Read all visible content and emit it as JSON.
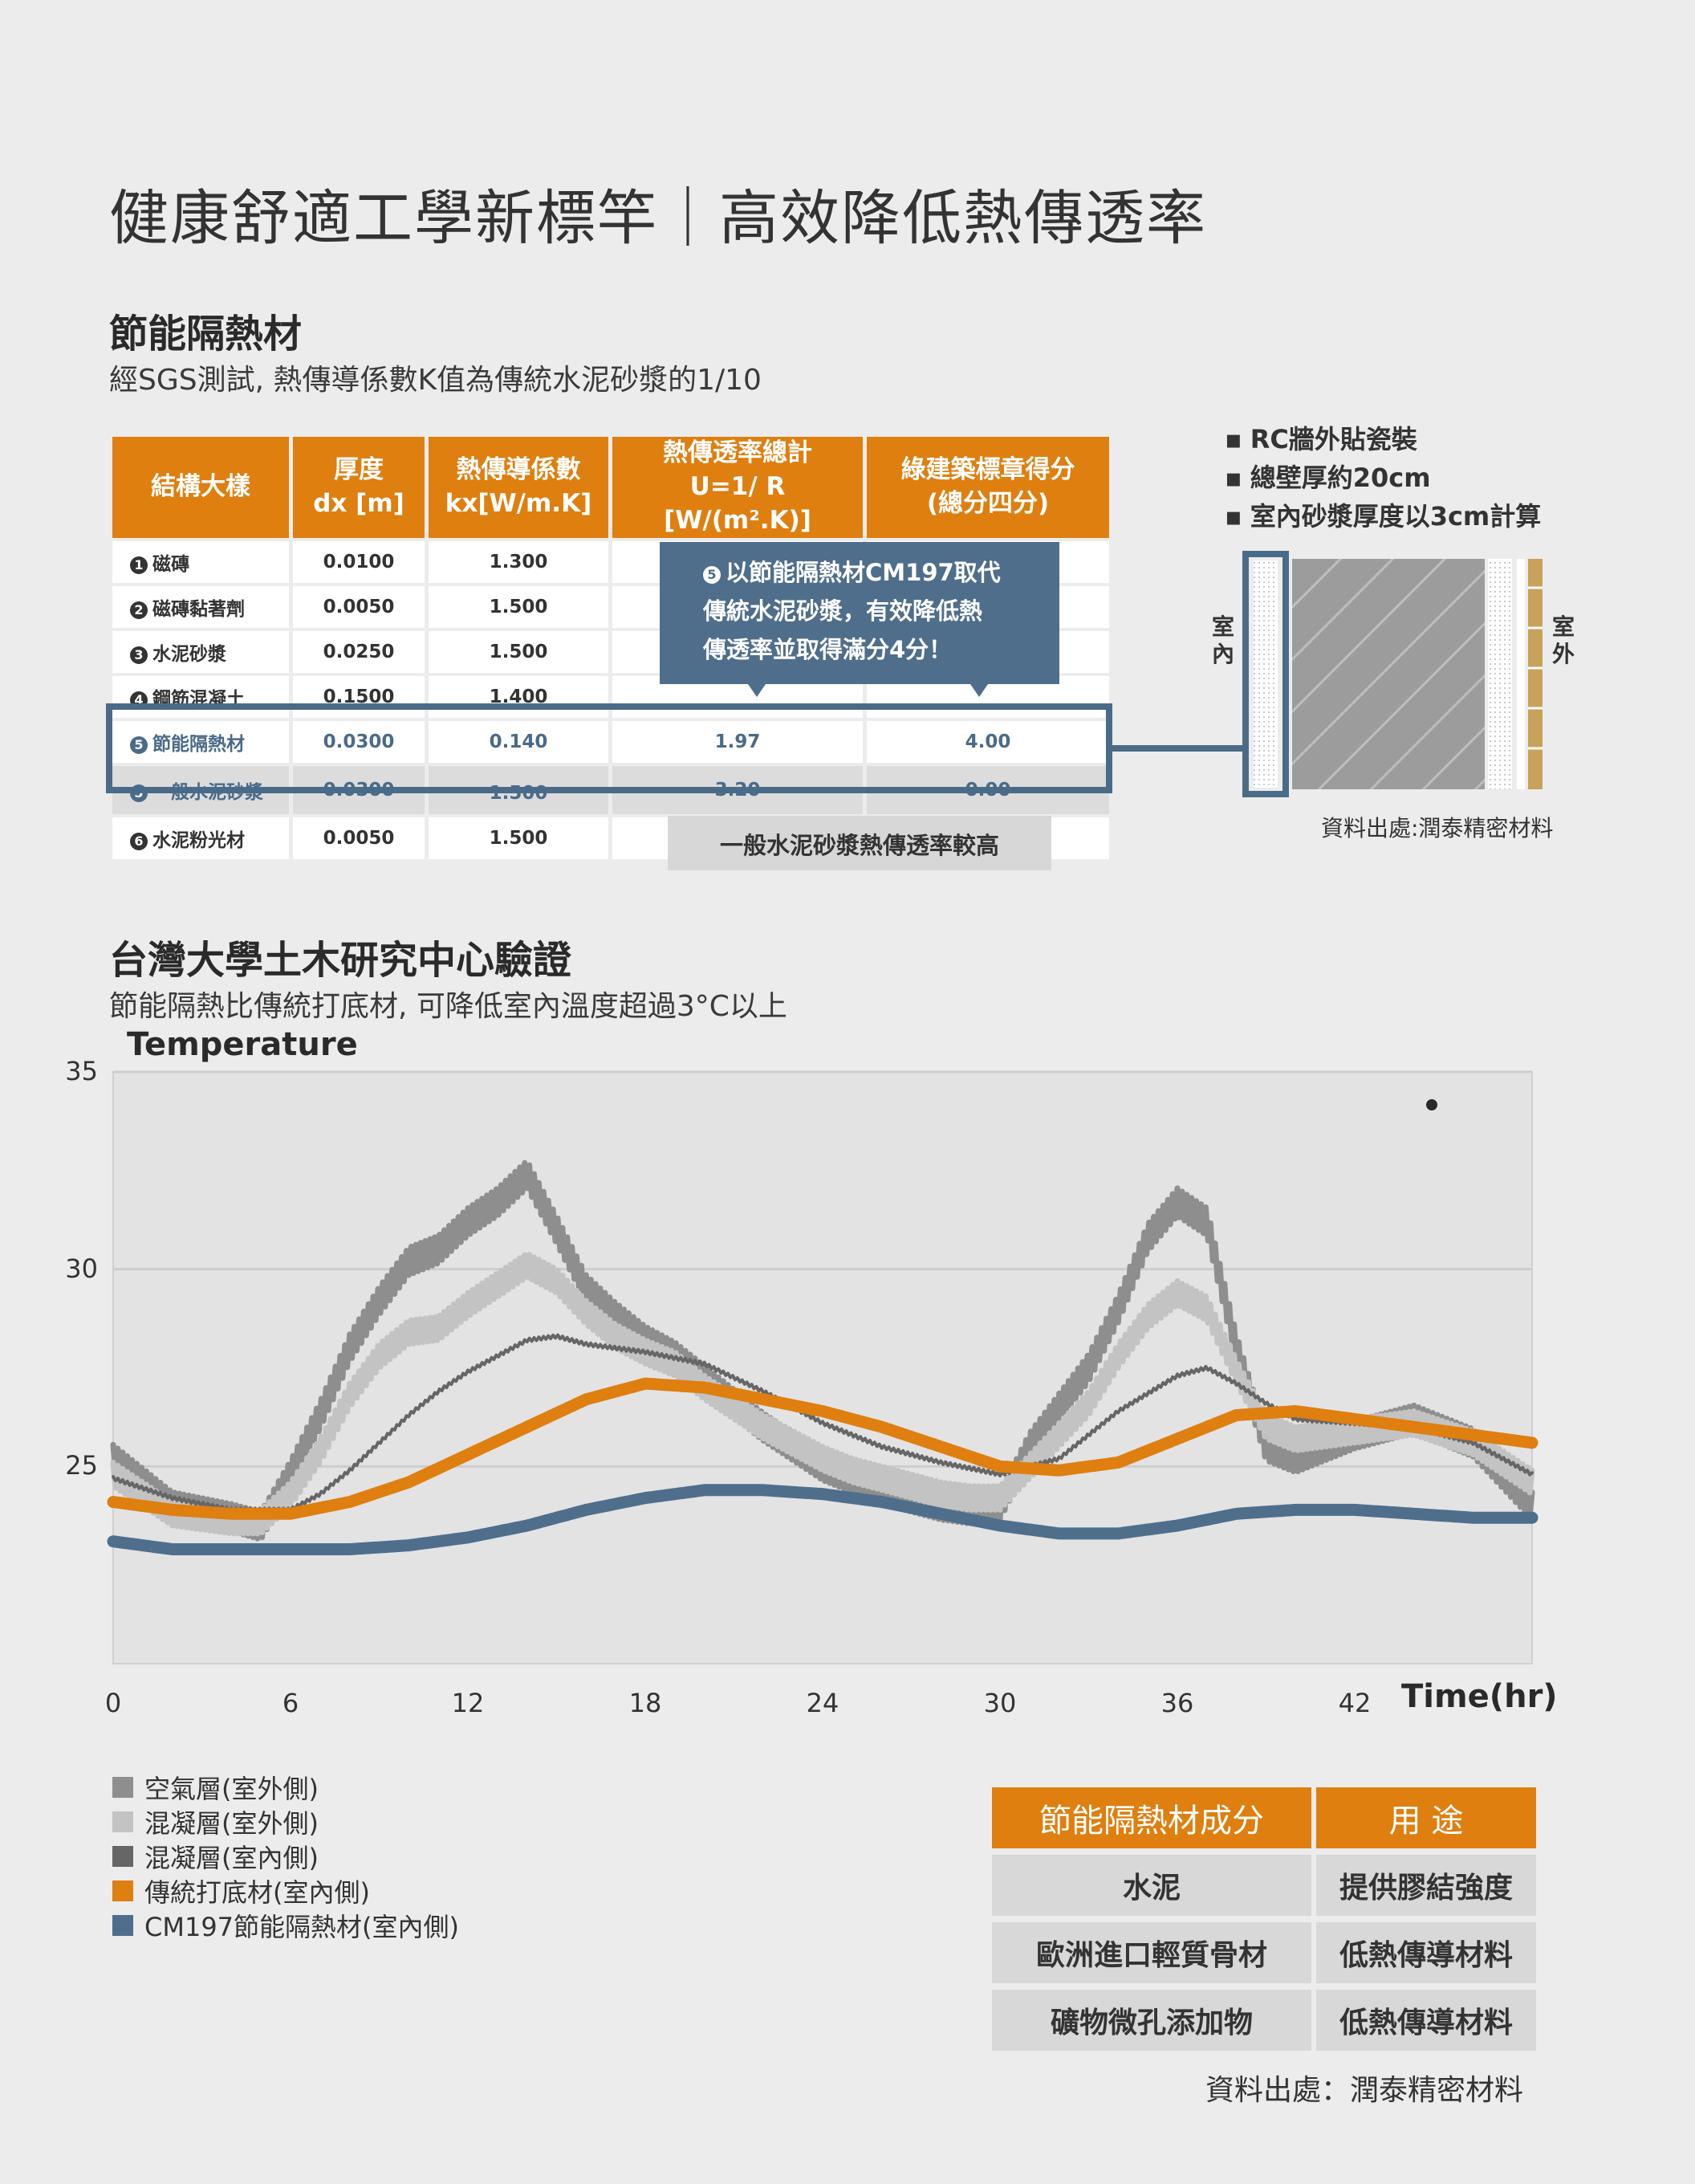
{
  "title": "健康舒適工學新標竿｜高效降低熱傳透率",
  "section1": {
    "title": "節能隔熱材",
    "subtitle": "經SGS測試, 熱傳導係數K值為傳統水泥砂漿的1/10"
  },
  "layers_table": {
    "headers": [
      "結構大樣",
      "厚度\ndx [m]",
      "熱傳導係數\nkx[W/m.K]",
      "熱傳透率總計\nU=1/ R [W/(m².K)]",
      "綠建築標章得分\n(總分四分)"
    ],
    "rows": [
      {
        "num": "1",
        "name": "磁磚",
        "dx": "0.0100",
        "kx": "1.300",
        "u": "",
        "score": ""
      },
      {
        "num": "2",
        "name": "磁磚黏著劑",
        "dx": "0.0050",
        "kx": "1.500",
        "u": "",
        "score": ""
      },
      {
        "num": "3",
        "name": "水泥砂漿",
        "dx": "0.0250",
        "kx": "1.500",
        "u": "",
        "score": ""
      },
      {
        "num": "4",
        "name": "鋼筋混凝土",
        "dx": "0.1500",
        "kx": "1.400",
        "u": "",
        "score": ""
      },
      {
        "num": "5",
        "name": "節能隔熱材",
        "dx": "0.0300",
        "kx": "0.140",
        "u": "1.97",
        "score": "4.00"
      },
      {
        "num": "5",
        "name": "一般水泥砂漿",
        "dx": "0.0300",
        "kx": "1.500",
        "u": "3.20",
        "score": "0.00"
      },
      {
        "num": "6",
        "name": "水泥粉光材",
        "dx": "0.0050",
        "kx": "1.500",
        "u": "",
        "score": ""
      }
    ]
  },
  "callout": {
    "num": "5",
    "lines": [
      "以節能隔熱材CM197取代",
      "傳統水泥砂漿，有效降低熱",
      "傳透率並取得滿分4分！"
    ]
  },
  "gray_tag": "一般水泥砂漿熱傳透率較高",
  "wall_notes": [
    "RC牆外貼瓷裝",
    "總壁厚約20cm",
    "室內砂漿厚度以3cm計算"
  ],
  "wall_labels": {
    "inside": "室\n內",
    "outside": "室\n外"
  },
  "wall_source": "資料出處:潤泰精密材料",
  "section2": {
    "title": "台灣大學土木研究中心驗證",
    "subtitle": "節能隔熱比傳統打底材, 可降低室內溫度超過3°C以上"
  },
  "chart_data": {
    "type": "line",
    "title": "Temperature",
    "xlabel": "Time(hr)",
    "ylabel": "",
    "xlim": [
      0,
      48
    ],
    "ylim": [
      20,
      35
    ],
    "x_ticks": [
      0,
      6,
      12,
      18,
      24,
      30,
      36,
      42
    ],
    "y_ticks": [
      25,
      30,
      35
    ],
    "grid": "horizontal",
    "legend": "bottom-left",
    "series": [
      {
        "name": "空氣層(室外側)",
        "color": "#8e8e8e",
        "x": [
          0,
          2,
          4,
          5,
          6,
          7,
          8,
          9,
          10,
          11,
          12,
          13,
          14,
          15,
          16,
          17,
          18,
          19,
          20,
          21,
          22,
          23,
          24,
          25,
          26,
          27,
          28,
          29,
          30,
          31,
          32,
          33,
          34,
          35,
          36,
          37,
          38,
          39,
          40,
          42,
          44,
          46,
          48
        ],
        "y": [
          25.2,
          24.0,
          23.7,
          23.5,
          24.8,
          26.3,
          28.0,
          29.2,
          30.2,
          30.5,
          31.2,
          31.7,
          32.4,
          31.0,
          29.5,
          28.8,
          28.2,
          27.8,
          27.2,
          26.6,
          26.0,
          25.5,
          25.0,
          24.7,
          24.4,
          24.2,
          24.0,
          23.9,
          24.0,
          25.5,
          26.5,
          27.5,
          29.0,
          30.8,
          31.7,
          31.2,
          28.0,
          25.5,
          25.2,
          25.8,
          26.2,
          25.6,
          24.0
        ]
      },
      {
        "name": "混凝層(室外側)",
        "color": "#c3c3c3",
        "x": [
          0,
          2,
          4,
          5,
          6,
          7,
          8,
          9,
          10,
          11,
          12,
          13,
          14,
          15,
          16,
          17,
          18,
          19,
          20,
          21,
          22,
          23,
          24,
          25,
          26,
          27,
          28,
          29,
          30,
          31,
          32,
          33,
          34,
          35,
          36,
          37,
          38,
          39,
          40,
          42,
          44,
          46,
          48
        ],
        "y": [
          24.8,
          23.8,
          23.6,
          23.6,
          24.3,
          25.4,
          26.8,
          27.8,
          28.4,
          28.5,
          29.1,
          29.6,
          30.1,
          29.7,
          28.9,
          28.3,
          27.9,
          27.6,
          27.0,
          26.5,
          26.0,
          25.6,
          25.2,
          24.9,
          24.7,
          24.5,
          24.3,
          24.2,
          24.2,
          25.0,
          25.8,
          26.6,
          27.8,
          28.8,
          29.4,
          29.0,
          27.4,
          26.0,
          25.7,
          25.9,
          26.1,
          25.6,
          24.6
        ]
      },
      {
        "name": "混凝層(室內側)",
        "color": "#666666",
        "x": [
          0,
          2,
          4,
          6,
          7,
          8,
          9,
          10,
          11,
          12,
          13,
          14,
          15,
          16,
          18,
          20,
          22,
          24,
          26,
          28,
          30,
          32,
          34,
          36,
          37,
          38,
          39,
          40,
          42,
          44,
          46,
          48
        ],
        "y": [
          24.7,
          24.2,
          23.9,
          23.9,
          24.3,
          24.9,
          25.6,
          26.3,
          26.9,
          27.4,
          27.8,
          28.2,
          28.3,
          28.1,
          27.9,
          27.6,
          26.9,
          26.1,
          25.5,
          25.1,
          24.8,
          25.2,
          26.4,
          27.3,
          27.5,
          27.1,
          26.6,
          26.2,
          26.1,
          26.0,
          25.6,
          24.8
        ]
      },
      {
        "name": "傳統打底材(室內側)",
        "color": "#de7f10",
        "x": [
          0,
          2,
          4,
          6,
          8,
          10,
          12,
          14,
          16,
          18,
          20,
          22,
          24,
          26,
          28,
          30,
          32,
          34,
          36,
          38,
          40,
          42,
          44,
          46,
          48
        ],
        "y": [
          24.1,
          23.9,
          23.8,
          23.8,
          24.1,
          24.6,
          25.3,
          26.0,
          26.7,
          27.1,
          27.0,
          26.7,
          26.4,
          26.0,
          25.5,
          25.0,
          24.9,
          25.1,
          25.7,
          26.3,
          26.4,
          26.2,
          26.0,
          25.8,
          25.6
        ]
      },
      {
        "name": "CM197節能隔熱材(室內側)",
        "color": "#4e6e8c",
        "x": [
          0,
          2,
          4,
          6,
          8,
          10,
          12,
          14,
          16,
          18,
          20,
          22,
          24,
          26,
          28,
          30,
          32,
          34,
          36,
          38,
          40,
          42,
          44,
          46,
          48
        ],
        "y": [
          23.1,
          22.9,
          22.9,
          22.9,
          22.9,
          23.0,
          23.2,
          23.5,
          23.9,
          24.2,
          24.4,
          24.4,
          24.3,
          24.1,
          23.8,
          23.5,
          23.3,
          23.3,
          23.5,
          23.8,
          23.9,
          23.9,
          23.8,
          23.7,
          23.7
        ]
      }
    ]
  },
  "ingredients": {
    "headers": [
      "節能隔熱材成分",
      "用 途"
    ],
    "rows": [
      {
        "item": "水泥",
        "use": "提供膠結強度"
      },
      {
        "item": "歐洲進口輕質骨材",
        "use": "低熱傳導材料"
      },
      {
        "item": "礦物微孔添加物",
        "use": "低熱傳導材料"
      }
    ]
  },
  "footer_source": "資料出處：潤泰精密材料"
}
